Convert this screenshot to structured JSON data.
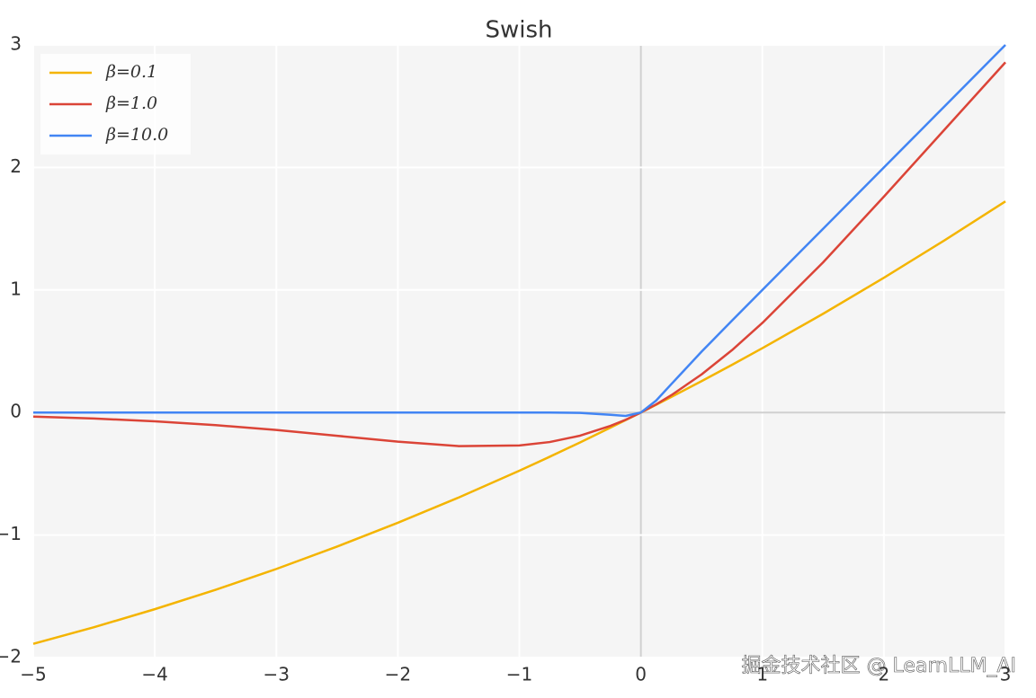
{
  "chart_data": {
    "type": "line",
    "title": "Swish",
    "x": [
      -5,
      -4.5,
      -4,
      -3.5,
      -3,
      -2.5,
      -2,
      -1.5,
      -1,
      -0.75,
      -0.5,
      -0.25,
      -0.125,
      0,
      0.125,
      0.25,
      0.5,
      0.75,
      1,
      1.5,
      2,
      2.5,
      3
    ],
    "series": [
      {
        "name": "β=0.1",
        "color": "#f4b400",
        "values": [
          -1.888,
          -1.752,
          -1.605,
          -1.447,
          -1.277,
          -1.094,
          -0.9,
          -0.694,
          -0.475,
          -0.361,
          -0.244,
          -0.123,
          -0.062,
          0,
          0.063,
          0.127,
          0.256,
          0.389,
          0.525,
          0.806,
          1.1,
          1.406,
          1.723
        ]
      },
      {
        "name": "β=1.0",
        "color": "#db4437",
        "values": [
          -0.033,
          -0.049,
          -0.072,
          -0.103,
          -0.142,
          -0.19,
          -0.238,
          -0.274,
          -0.269,
          -0.241,
          -0.189,
          -0.109,
          -0.059,
          0,
          0.066,
          0.141,
          0.311,
          0.509,
          0.731,
          1.226,
          1.762,
          2.31,
          2.858
        ]
      },
      {
        "name": "β=10.0",
        "color": "#4285f4",
        "values": [
          0,
          0,
          0,
          0,
          0,
          0,
          0,
          0,
          0,
          0,
          -0.003,
          -0.019,
          -0.028,
          0,
          0.097,
          0.231,
          0.497,
          0.75,
          1,
          1.5,
          2,
          2.5,
          3
        ]
      }
    ],
    "xlim": [
      -5,
      3
    ],
    "ylim": [
      -2,
      3
    ],
    "xticks": [
      {
        "value": -5,
        "label": "−5"
      },
      {
        "value": -4,
        "label": "−4"
      },
      {
        "value": -3,
        "label": "−3"
      },
      {
        "value": -2,
        "label": "−2"
      },
      {
        "value": -1,
        "label": "−1"
      },
      0,
      1,
      2,
      3
    ],
    "yticks": [
      {
        "value": -2,
        "label": "−2"
      },
      {
        "value": -1,
        "label": "−1"
      },
      0,
      1,
      2,
      3
    ],
    "grid": true,
    "legend": "upper-left",
    "watermark": "掘金技术社区 @ LearnLLM_AI"
  }
}
